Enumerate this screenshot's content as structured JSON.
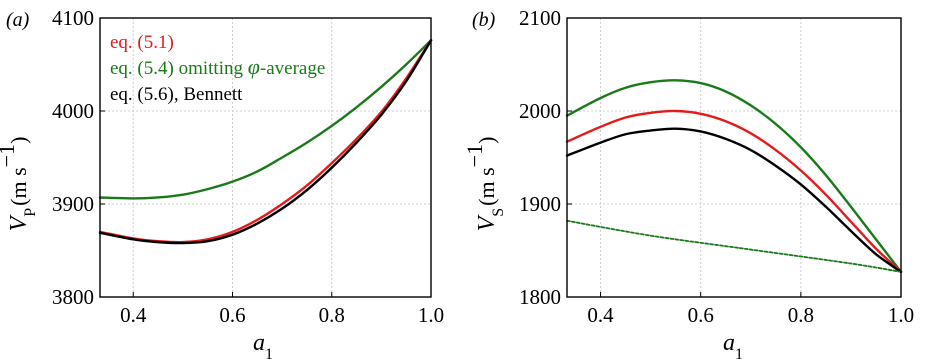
{
  "chart_data": [
    {
      "type": "line",
      "panel_label": "(a)",
      "ylabel_main": "V",
      "ylabel_sub": "P",
      "ylabel_unit": "(m s",
      "ylabel_exp": "−1",
      "ylabel_close": ")",
      "xlabel_main": "a",
      "xlabel_sub": "1",
      "xlim": [
        0.333,
        1.0
      ],
      "ylim": [
        3800,
        4100
      ],
      "xticks": [
        "0.4",
        "0.6",
        "0.8",
        "1.0"
      ],
      "xtick_values": [
        0.4,
        0.6,
        0.8,
        1.0
      ],
      "yticks": [
        "3800",
        "3900",
        "4000",
        "4100"
      ],
      "ytick_values": [
        3800,
        3900,
        4000,
        4100
      ],
      "grid": true,
      "legend_position": "top-left",
      "legend_entries": [
        {
          "label": "eq. (5.1)",
          "color": "#e41a1c"
        },
        {
          "label": "eq. (5.4) omitting ",
          "symbol": "φ",
          "suffix": "-average",
          "color": "#1a7a1a"
        },
        {
          "label": "eq. (5.6), Bennett",
          "color": "#000000"
        }
      ],
      "series": [
        {
          "color": "#1a7a1a",
          "dashed": false,
          "x": [
            0.333,
            0.4,
            0.45,
            0.5,
            0.55,
            0.6,
            0.65,
            0.7,
            0.75,
            0.8,
            0.85,
            0.9,
            0.95,
            1.0
          ],
          "y": [
            3907,
            3906,
            3907,
            3910,
            3916,
            3924,
            3935,
            3950,
            3966,
            3984,
            4004,
            4026,
            4050,
            4076
          ]
        },
        {
          "color": "#e41a1c",
          "dashed": false,
          "x": [
            0.333,
            0.4,
            0.45,
            0.5,
            0.55,
            0.6,
            0.65,
            0.7,
            0.75,
            0.8,
            0.85,
            0.9,
            0.95,
            1.0
          ],
          "y": [
            3870,
            3863,
            3860,
            3859,
            3862,
            3870,
            3883,
            3900,
            3920,
            3944,
            3970,
            3999,
            4035,
            4076
          ]
        },
        {
          "color": "#000000",
          "dashed": false,
          "x": [
            0.333,
            0.4,
            0.45,
            0.5,
            0.55,
            0.6,
            0.65,
            0.7,
            0.75,
            0.8,
            0.85,
            0.9,
            0.95,
            1.0
          ],
          "y": [
            3869,
            3862,
            3859,
            3858,
            3860,
            3867,
            3879,
            3895,
            3915,
            3939,
            3966,
            3996,
            4032,
            4076
          ]
        }
      ]
    },
    {
      "type": "line",
      "panel_label": "(b)",
      "ylabel_main": "V",
      "ylabel_sub": "S",
      "ylabel_unit": "(m s",
      "ylabel_exp": "−1",
      "ylabel_close": ")",
      "xlabel_main": "a",
      "xlabel_sub": "1",
      "xlim": [
        0.333,
        1.0
      ],
      "ylim": [
        1800,
        2100
      ],
      "xticks": [
        "0.4",
        "0.6",
        "0.8",
        "1.0"
      ],
      "xtick_values": [
        0.4,
        0.6,
        0.8,
        1.0
      ],
      "yticks": [
        "1800",
        "1900",
        "2000",
        "2100"
      ],
      "ytick_values": [
        1800,
        1900,
        2000,
        2100
      ],
      "grid": true,
      "series": [
        {
          "color": "#1a7a1a",
          "dashed": false,
          "x": [
            0.333,
            0.4,
            0.45,
            0.5,
            0.55,
            0.6,
            0.65,
            0.7,
            0.75,
            0.8,
            0.85,
            0.9,
            0.95,
            1.0
          ],
          "y": [
            1995,
            2014,
            2025,
            2031,
            2033,
            2030,
            2021,
            2006,
            1986,
            1961,
            1931,
            1897,
            1862,
            1827
          ]
        },
        {
          "color": "#e41a1c",
          "dashed": false,
          "x": [
            0.333,
            0.4,
            0.45,
            0.5,
            0.55,
            0.6,
            0.65,
            0.7,
            0.75,
            0.8,
            0.85,
            0.9,
            0.95,
            1.0
          ],
          "y": [
            1967,
            1983,
            1993,
            1998,
            2000,
            1997,
            1989,
            1976,
            1958,
            1936,
            1910,
            1881,
            1852,
            1827
          ]
        },
        {
          "color": "#000000",
          "dashed": false,
          "x": [
            0.333,
            0.4,
            0.45,
            0.5,
            0.55,
            0.6,
            0.65,
            0.7,
            0.75,
            0.8,
            0.85,
            0.9,
            0.95,
            1.0
          ],
          "y": [
            1952,
            1966,
            1975,
            1979,
            1981,
            1978,
            1970,
            1958,
            1941,
            1921,
            1897,
            1871,
            1846,
            1827
          ]
        },
        {
          "color": "#1a7a1a",
          "dashed": true,
          "x": [
            0.333,
            0.5,
            0.7,
            0.9,
            1.0
          ],
          "y": [
            1882,
            1866,
            1851,
            1836,
            1827
          ]
        }
      ]
    }
  ]
}
